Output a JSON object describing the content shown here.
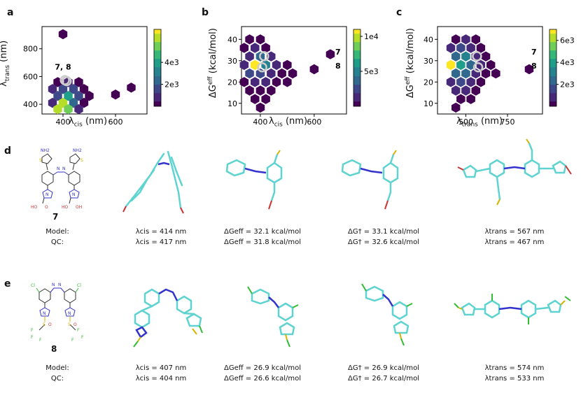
{
  "panels": {
    "a": {
      "letter": "a",
      "xlabel": "λcis (nm)",
      "ylabel": "λtrans (nm)",
      "xticks": [
        "400",
        "600"
      ],
      "yticks": [
        "400",
        "600",
        "800"
      ],
      "cbar_ticks": [
        "2e3",
        "4e3"
      ],
      "annotation": "7, 8"
    },
    "b": {
      "letter": "b",
      "xlabel": "λcis (nm)",
      "ylabel": "ΔGeff (kcal/mol)",
      "xticks": [
        "400",
        "600"
      ],
      "yticks": [
        "10",
        "20",
        "30",
        "40"
      ],
      "cbar_ticks": [
        "5e3",
        "1e4"
      ],
      "annotation_7": "7",
      "annotation_8": "8"
    },
    "c": {
      "letter": "c",
      "xlabel": "λtrans (nm)",
      "ylabel": "ΔGeff (kcal/mol)",
      "xticks": [
        "500",
        "750"
      ],
      "yticks": [
        "10",
        "20",
        "30",
        "40"
      ],
      "cbar_ticks": [
        "2e3",
        "4e3",
        "6e3"
      ],
      "annotation_7": "7",
      "annotation_8": "8"
    }
  },
  "row_d": {
    "letter": "d",
    "molecule": "7",
    "row_label_model": "Model:",
    "row_label_qc": "QC:",
    "lcis_model": "λcis = 414 nm",
    "lcis_qc": "λcis = 417 nm",
    "geff_model": "ΔGeff = 32.1 kcal/mol",
    "geff_qc": "ΔGeff = 31.8 kcal/mol",
    "gdag_model": "ΔG† = 33.1 kcal/mol",
    "gdag_qc": "ΔG† = 32.6 kcal/mol",
    "ltrans_model": "λtrans = 567 nm",
    "ltrans_qc": "λtrans = 467 nm"
  },
  "row_e": {
    "letter": "e",
    "molecule": "8",
    "row_label_model": "Model:",
    "row_label_qc": "QC:",
    "lcis_model": "λcis = 407 nm",
    "lcis_qc": "λcis = 404 nm",
    "geff_model": "ΔGeff = 26.9 kcal/mol",
    "geff_qc": "ΔGeff = 26.6 kcal/mol",
    "gdag_model": "ΔG† = 26.9 kcal/mol",
    "gdag_qc": "ΔG† = 26.7 kcal/mol",
    "ltrans_model": "λtrans = 574 nm",
    "ltrans_qc": "λtrans = 533 nm"
  },
  "atom_labels": {
    "nh2": "NH2",
    "n": "N",
    "oh": "OH",
    "ho": "HO",
    "o": "O",
    "cl": "Cl",
    "f": "F",
    "s": "S"
  },
  "colors": {
    "hex_dark": "#440154",
    "hex_mid": "#3b528b",
    "hex_teal": "#21918c",
    "hex_green": "#5ec962",
    "hex_yellow": "#fde725",
    "mol_cyan": "#5fd3d0",
    "mol_blue": "#3333cc",
    "mol_red": "#cc3333",
    "mol_green": "#33bb33",
    "mol_yellow": "#d4b400"
  },
  "chart_data": [
    {
      "type": "heatmap",
      "panel": "a",
      "title": "",
      "xlabel": "λcis (nm)",
      "ylabel": "λtrans (nm)",
      "xlim": [
        320,
        720
      ],
      "ylim": [
        330,
        960
      ],
      "colorbar_ticks": [
        2000,
        4000
      ],
      "hexbins": [
        {
          "x": 400,
          "y": 905,
          "c": 40
        },
        {
          "x": 380,
          "y": 560,
          "c": 300
        },
        {
          "x": 420,
          "y": 560,
          "c": 500
        },
        {
          "x": 460,
          "y": 560,
          "c": 200
        },
        {
          "x": 360,
          "y": 510,
          "c": 800
        },
        {
          "x": 400,
          "y": 510,
          "c": 1500
        },
        {
          "x": 440,
          "y": 510,
          "c": 1200
        },
        {
          "x": 480,
          "y": 510,
          "c": 300
        },
        {
          "x": 380,
          "y": 460,
          "c": 1800
        },
        {
          "x": 420,
          "y": 460,
          "c": 4200
        },
        {
          "x": 460,
          "y": 460,
          "c": 1700
        },
        {
          "x": 500,
          "y": 460,
          "c": 200
        },
        {
          "x": 360,
          "y": 410,
          "c": 900
        },
        {
          "x": 400,
          "y": 410,
          "c": 6500
        },
        {
          "x": 440,
          "y": 410,
          "c": 2400
        },
        {
          "x": 480,
          "y": 410,
          "c": 300
        },
        {
          "x": 380,
          "y": 365,
          "c": 6000
        },
        {
          "x": 420,
          "y": 365,
          "c": 5500
        },
        {
          "x": 460,
          "y": 365,
          "c": 1000
        },
        {
          "x": 600,
          "y": 470,
          "c": 40
        },
        {
          "x": 660,
          "y": 520,
          "c": 40
        }
      ],
      "markers": [
        {
          "label": "7",
          "x": 414,
          "y": 567
        },
        {
          "label": "8",
          "x": 407,
          "y": 574
        }
      ]
    },
    {
      "type": "heatmap",
      "panel": "b",
      "title": "",
      "xlabel": "λcis (nm)",
      "ylabel": "ΔGeff (kcal/mol)",
      "xlim": [
        330,
        720
      ],
      "ylim": [
        5,
        46
      ],
      "colorbar_ticks": [
        5000,
        10000
      ],
      "hexbins": [
        {
          "x": 360,
          "y": 40,
          "c": 300
        },
        {
          "x": 400,
          "y": 40,
          "c": 200
        },
        {
          "x": 340,
          "y": 36,
          "c": 400
        },
        {
          "x": 380,
          "y": 36,
          "c": 1500
        },
        {
          "x": 420,
          "y": 36,
          "c": 600
        },
        {
          "x": 360,
          "y": 32,
          "c": 1800
        },
        {
          "x": 400,
          "y": 32,
          "c": 3200
        },
        {
          "x": 440,
          "y": 32,
          "c": 1200
        },
        {
          "x": 340,
          "y": 28,
          "c": 900
        },
        {
          "x": 380,
          "y": 28,
          "c": 10500
        },
        {
          "x": 420,
          "y": 28,
          "c": 4500
        },
        {
          "x": 460,
          "y": 28,
          "c": 800
        },
        {
          "x": 500,
          "y": 28,
          "c": 300
        },
        {
          "x": 360,
          "y": 24,
          "c": 2000
        },
        {
          "x": 400,
          "y": 24,
          "c": 2400
        },
        {
          "x": 440,
          "y": 24,
          "c": 900
        },
        {
          "x": 480,
          "y": 24,
          "c": 300
        },
        {
          "x": 520,
          "y": 24,
          "c": 200
        },
        {
          "x": 340,
          "y": 20,
          "c": 500
        },
        {
          "x": 380,
          "y": 20,
          "c": 900
        },
        {
          "x": 420,
          "y": 20,
          "c": 700
        },
        {
          "x": 460,
          "y": 20,
          "c": 300
        },
        {
          "x": 500,
          "y": 20,
          "c": 200
        },
        {
          "x": 360,
          "y": 16,
          "c": 400
        },
        {
          "x": 400,
          "y": 16,
          "c": 500
        },
        {
          "x": 440,
          "y": 16,
          "c": 300
        },
        {
          "x": 380,
          "y": 12,
          "c": 300
        },
        {
          "x": 420,
          "y": 12,
          "c": 200
        },
        {
          "x": 400,
          "y": 8,
          "c": 100
        },
        {
          "x": 600,
          "y": 26,
          "c": 50
        },
        {
          "x": 660,
          "y": 33,
          "c": 50
        }
      ],
      "markers": [
        {
          "label": "7",
          "x": 414,
          "y": 32.1
        },
        {
          "label": "8",
          "x": 407,
          "y": 26.9
        }
      ]
    },
    {
      "type": "heatmap",
      "panel": "c",
      "title": "",
      "xlabel": "λtrans (nm)",
      "ylabel": "ΔGeff (kcal/mol)",
      "xlim": [
        330,
        960
      ],
      "ylim": [
        5,
        46
      ],
      "colorbar_ticks": [
        2000,
        4000,
        6000
      ],
      "hexbins": [
        {
          "x": 440,
          "y": 40,
          "c": 300
        },
        {
          "x": 500,
          "y": 40,
          "c": 500
        },
        {
          "x": 560,
          "y": 40,
          "c": 200
        },
        {
          "x": 410,
          "y": 36,
          "c": 400
        },
        {
          "x": 470,
          "y": 36,
          "c": 1300
        },
        {
          "x": 530,
          "y": 36,
          "c": 900
        },
        {
          "x": 590,
          "y": 36,
          "c": 300
        },
        {
          "x": 440,
          "y": 32,
          "c": 2500
        },
        {
          "x": 500,
          "y": 32,
          "c": 2800
        },
        {
          "x": 560,
          "y": 32,
          "c": 1000
        },
        {
          "x": 620,
          "y": 32,
          "c": 300
        },
        {
          "x": 410,
          "y": 28,
          "c": 6800
        },
        {
          "x": 470,
          "y": 28,
          "c": 4200
        },
        {
          "x": 530,
          "y": 28,
          "c": 2200
        },
        {
          "x": 590,
          "y": 28,
          "c": 700
        },
        {
          "x": 650,
          "y": 28,
          "c": 300
        },
        {
          "x": 440,
          "y": 24,
          "c": 2200
        },
        {
          "x": 500,
          "y": 24,
          "c": 2600
        },
        {
          "x": 560,
          "y": 24,
          "c": 1100
        },
        {
          "x": 620,
          "y": 24,
          "c": 300
        },
        {
          "x": 680,
          "y": 24,
          "c": 150
        },
        {
          "x": 410,
          "y": 20,
          "c": 700
        },
        {
          "x": 470,
          "y": 20,
          "c": 1200
        },
        {
          "x": 530,
          "y": 20,
          "c": 800
        },
        {
          "x": 590,
          "y": 20,
          "c": 300
        },
        {
          "x": 440,
          "y": 16,
          "c": 400
        },
        {
          "x": 500,
          "y": 16,
          "c": 500
        },
        {
          "x": 560,
          "y": 16,
          "c": 300
        },
        {
          "x": 470,
          "y": 12,
          "c": 300
        },
        {
          "x": 530,
          "y": 12,
          "c": 200
        },
        {
          "x": 440,
          "y": 8,
          "c": 100
        },
        {
          "x": 880,
          "y": 26,
          "c": 50
        }
      ],
      "markers": [
        {
          "label": "7",
          "x": 567,
          "y": 32.1
        },
        {
          "label": "8",
          "x": 574,
          "y": 26.9
        }
      ]
    }
  ]
}
